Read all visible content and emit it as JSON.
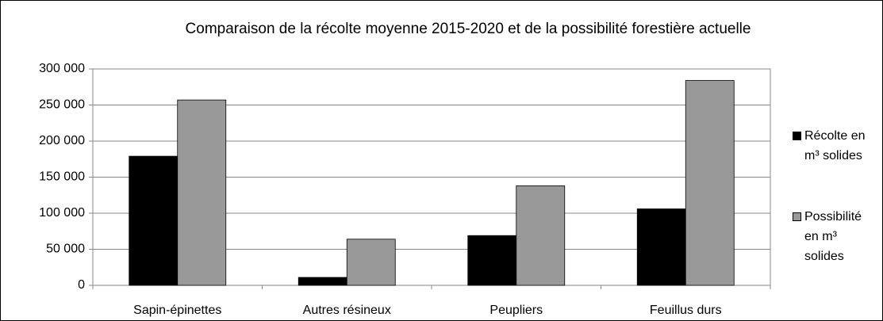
{
  "chart_data": {
    "type": "bar",
    "title": "Comparaison de la récolte moyenne 2015-2020 et de la possibilité forestière actuelle",
    "categories": [
      "Sapin-épinettes",
      "Autres résineux",
      "Peupliers",
      "Feuillus durs"
    ],
    "series": [
      {
        "name": "Récolte en m³ solides",
        "color": "#000000",
        "values": [
          179000,
          11000,
          69000,
          106000
        ]
      },
      {
        "name": "Possibilité en m³ solides",
        "color": "#999999",
        "values": [
          257000,
          64000,
          138000,
          284000
        ]
      }
    ],
    "ylim": [
      0,
      300000
    ],
    "yticks": [
      {
        "value": 0,
        "label": "0"
      },
      {
        "value": 50000,
        "label": "50 000"
      },
      {
        "value": 100000,
        "label": "100 000"
      },
      {
        "value": 150000,
        "label": "150 000"
      },
      {
        "value": 200000,
        "label": "200 000"
      },
      {
        "value": 250000,
        "label": "250 000"
      },
      {
        "value": 300000,
        "label": "300 000"
      }
    ],
    "grid": true,
    "legend": "right"
  }
}
